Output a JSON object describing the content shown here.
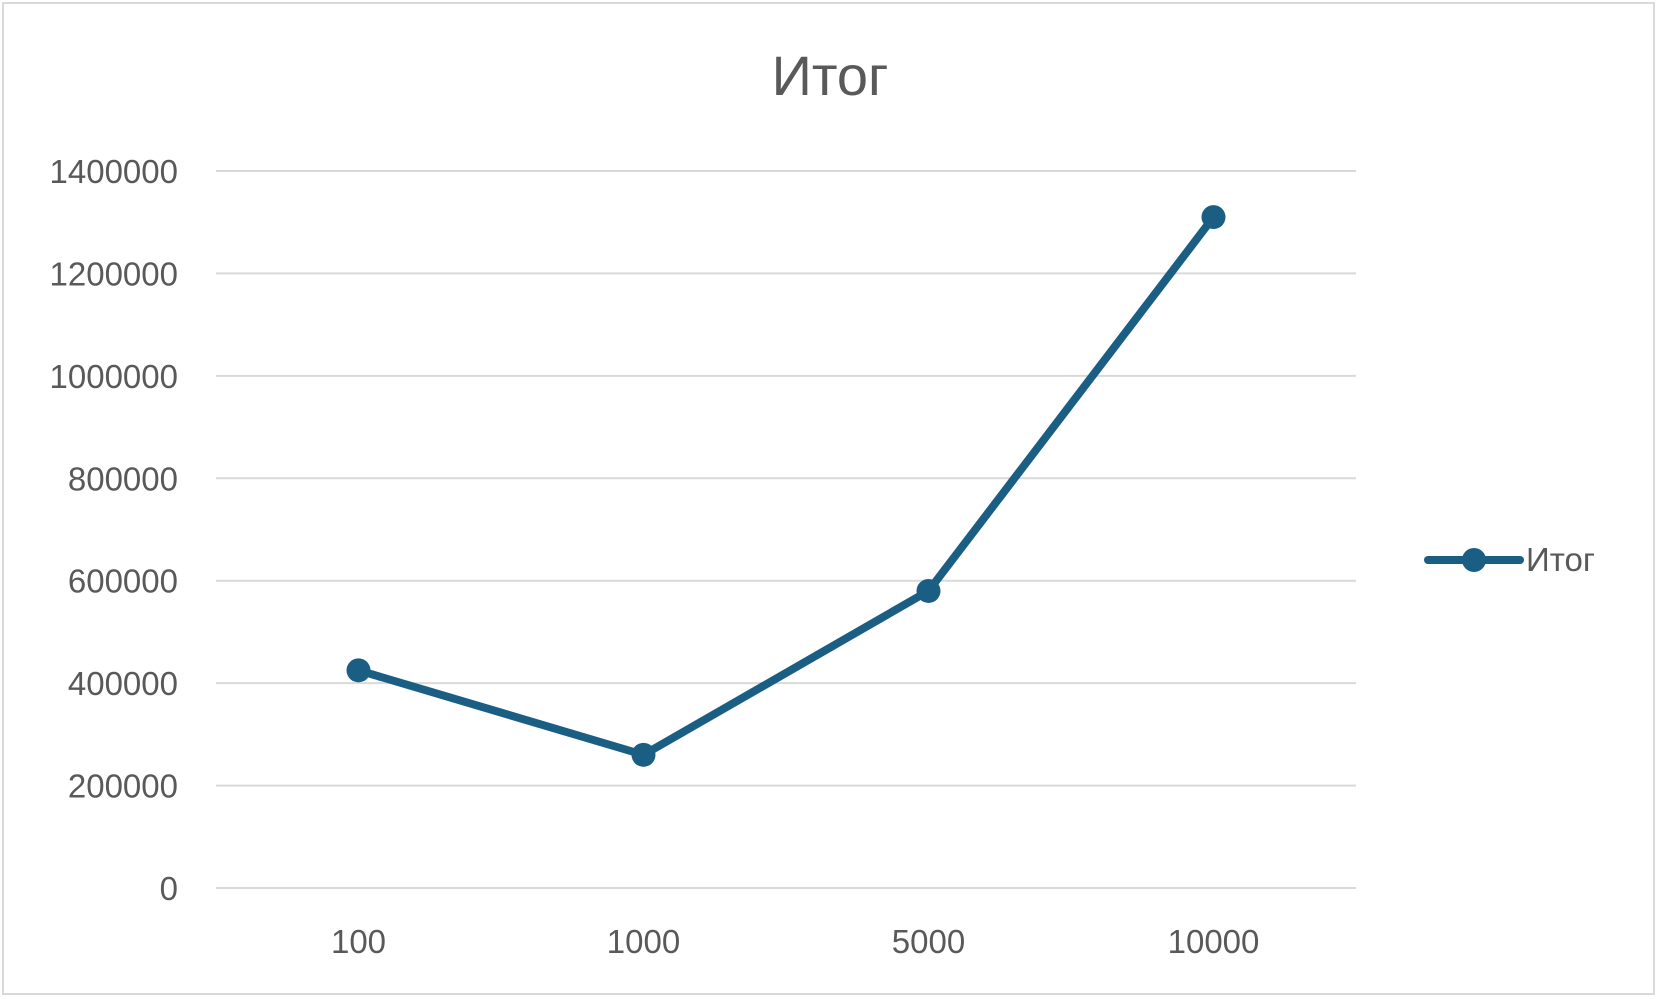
{
  "chart_data": {
    "type": "line",
    "title": "Итог",
    "categories": [
      "100",
      "1000",
      "5000",
      "10000"
    ],
    "series": [
      {
        "name": "Итог",
        "values": [
          425000,
          260000,
          580000,
          1310000
        ],
        "color": "#1b5e84"
      }
    ],
    "ylim": [
      0,
      1400000
    ],
    "yticks": [
      "0",
      "200000",
      "400000",
      "600000",
      "800000",
      "1000000",
      "1200000",
      "1400000"
    ],
    "xlabel": "",
    "ylabel": "",
    "grid": true,
    "legend_position": "right"
  }
}
